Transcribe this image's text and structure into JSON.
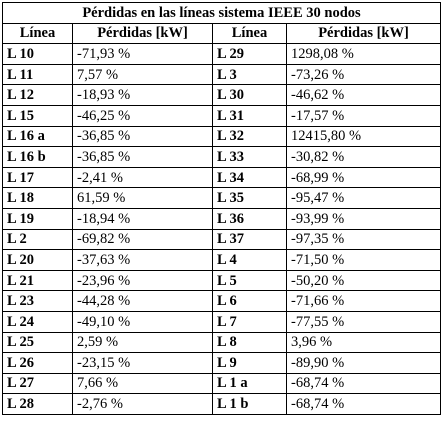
{
  "table": {
    "title": "Pérdidas en las líneas sistema IEEE 30 nodos",
    "headers": [
      "Línea",
      "Pérdidas [kW]",
      "Línea",
      "Pérdidas [kW]"
    ],
    "rows": [
      [
        "L 10",
        "-71,93 %",
        "L 29",
        "1298,08 %"
      ],
      [
        "L 11",
        "7,57 %",
        "L 3",
        "-73,26 %"
      ],
      [
        "L 12",
        "-18,93 %",
        "L 30",
        "-46,62 %"
      ],
      [
        "L 15",
        "-46,25 %",
        "L 31",
        "-17,57 %"
      ],
      [
        "L 16 a",
        "-36,85 %",
        "L 32",
        "12415,80 %"
      ],
      [
        "L 16 b",
        "-36,85 %",
        "L 33",
        "-30,82 %"
      ],
      [
        "L 17",
        "-2,41 %",
        "L 34",
        "-68,99 %"
      ],
      [
        "L 18",
        "61,59 %",
        "L 35",
        "-95,47 %"
      ],
      [
        "L 19",
        "-18,94 %",
        "L 36",
        "-93,99 %"
      ],
      [
        "L 2",
        "-69,82 %",
        "L 37",
        "-97,35 %"
      ],
      [
        "L 20",
        "-37,63 %",
        "L 4",
        "-71,50 %"
      ],
      [
        "L 21",
        "-23,96 %",
        "L 5",
        "-50,20 %"
      ],
      [
        "L 23",
        "-44,28 %",
        "L 6",
        "-71,66 %"
      ],
      [
        "L 24",
        "-49,10 %",
        "L 7",
        "-77,55 %"
      ],
      [
        "L 25",
        "2,59 %",
        "L 8",
        "3,96 %"
      ],
      [
        "L 26",
        "-23,15 %",
        "L 9",
        "-89,90 %"
      ],
      [
        "L 27",
        "7,66 %",
        "L 1 a",
        "-68,74 %"
      ],
      [
        "L 28",
        "-2,76 %",
        "L 1 b",
        "-68,74 %"
      ]
    ]
  }
}
